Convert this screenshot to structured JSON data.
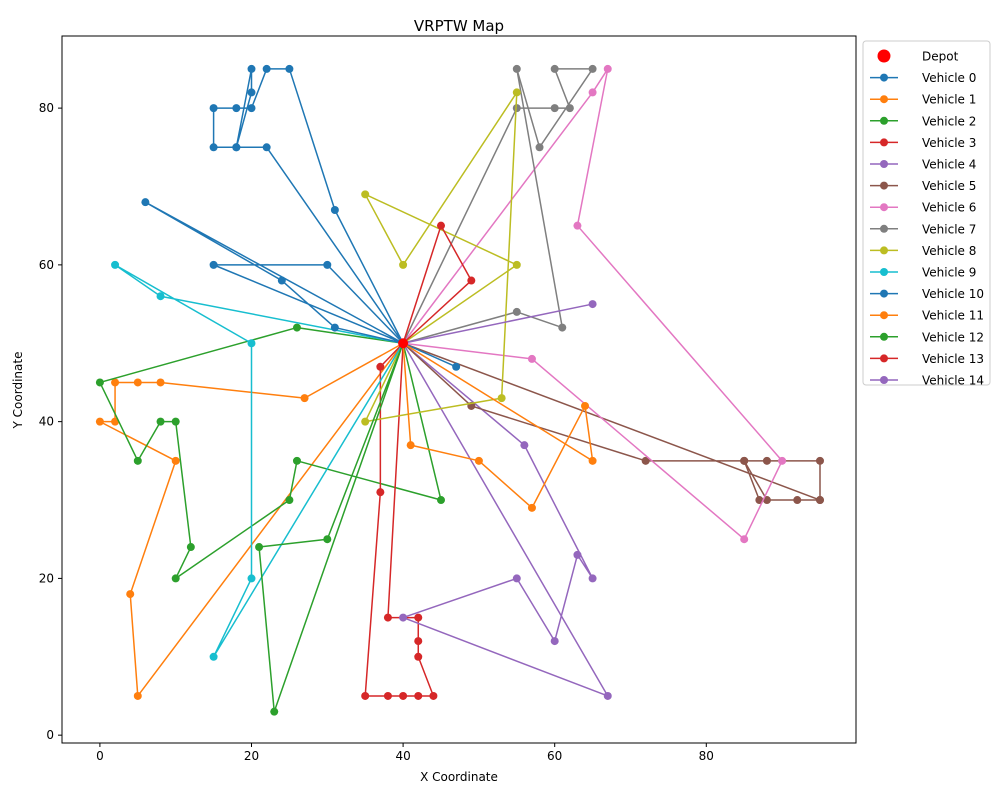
{
  "chart_data": {
    "type": "line",
    "title": "VRPTW Map",
    "xlabel": "X Coordinate",
    "ylabel": "Y Coordinate",
    "xlim": [
      -5,
      99.75
    ],
    "ylim": [
      -1,
      89.2
    ],
    "xticks": [
      0,
      20,
      40,
      60,
      80
    ],
    "yticks": [
      0,
      20,
      40,
      60,
      80
    ],
    "grid": false,
    "legend_position": "outside-right-top",
    "depot": {
      "name": "Depot",
      "x": 40,
      "y": 50,
      "color": "#ff0000"
    },
    "series": [
      {
        "name": "Vehicle 0",
        "color": "#1f77b4",
        "points": [
          [
            40,
            50
          ],
          [
            31,
            67
          ],
          [
            25,
            85
          ],
          [
            22,
            85
          ],
          [
            20,
            80
          ],
          [
            18,
            80
          ],
          [
            15,
            80
          ],
          [
            15,
            75
          ],
          [
            18,
            75
          ],
          [
            20,
            85
          ],
          [
            20,
            82
          ],
          [
            18,
            75
          ],
          [
            22,
            75
          ],
          [
            40,
            50
          ]
        ]
      },
      {
        "name": "Vehicle 1",
        "color": "#ff7f0e",
        "points": [
          [
            40,
            50
          ],
          [
            27,
            43
          ],
          [
            8,
            45
          ],
          [
            5,
            45
          ],
          [
            2,
            45
          ],
          [
            2,
            40
          ],
          [
            0,
            40
          ],
          [
            10,
            35
          ],
          [
            4,
            18
          ],
          [
            5,
            5
          ],
          [
            40,
            50
          ]
        ]
      },
      {
        "name": "Vehicle 2",
        "color": "#2ca02c",
        "points": [
          [
            40,
            50
          ],
          [
            26,
            52
          ],
          [
            0,
            45
          ],
          [
            5,
            35
          ],
          [
            8,
            40
          ],
          [
            10,
            40
          ],
          [
            12,
            24
          ],
          [
            10,
            20
          ],
          [
            25,
            30
          ],
          [
            26,
            35
          ],
          [
            45,
            30
          ],
          [
            40,
            50
          ]
        ]
      },
      {
        "name": "Vehicle 3",
        "color": "#d62728",
        "points": [
          [
            40,
            50
          ],
          [
            37,
            47
          ],
          [
            37,
            31
          ],
          [
            35,
            5
          ],
          [
            38,
            5
          ],
          [
            40,
            5
          ],
          [
            42,
            5
          ],
          [
            44,
            5
          ],
          [
            42,
            10
          ],
          [
            42,
            12
          ],
          [
            42,
            15
          ],
          [
            38,
            15
          ],
          [
            40,
            50
          ]
        ]
      },
      {
        "name": "Vehicle 4",
        "color": "#9467bd",
        "points": [
          [
            40,
            50
          ],
          [
            56,
            37
          ],
          [
            65,
            20
          ],
          [
            63,
            23
          ],
          [
            60,
            12
          ],
          [
            55,
            20
          ],
          [
            40,
            15
          ],
          [
            67,
            5
          ],
          [
            40,
            50
          ]
        ]
      },
      {
        "name": "Vehicle 5",
        "color": "#8c564b",
        "points": [
          [
            40,
            50
          ],
          [
            49,
            42
          ],
          [
            72,
            35
          ],
          [
            85,
            35
          ],
          [
            87,
            30
          ],
          [
            95,
            30
          ],
          [
            95,
            35
          ],
          [
            88,
            35
          ],
          [
            85,
            35
          ],
          [
            88,
            30
          ],
          [
            92,
            30
          ],
          [
            95,
            30
          ],
          [
            40,
            50
          ]
        ]
      },
      {
        "name": "Vehicle 6",
        "color": "#e377c2",
        "points": [
          [
            40,
            50
          ],
          [
            65,
            82
          ],
          [
            67,
            85
          ],
          [
            63,
            65
          ],
          [
            90,
            35
          ],
          [
            85,
            25
          ],
          [
            57,
            48
          ],
          [
            40,
            50
          ]
        ]
      },
      {
        "name": "Vehicle 7",
        "color": "#7f7f7f",
        "points": [
          [
            40,
            50
          ],
          [
            55,
            80
          ],
          [
            60,
            80
          ],
          [
            62,
            80
          ],
          [
            60,
            85
          ],
          [
            65,
            85
          ],
          [
            58,
            75
          ],
          [
            55,
            85
          ],
          [
            61,
            52
          ],
          [
            55,
            54
          ],
          [
            40,
            50
          ]
        ]
      },
      {
        "name": "Vehicle 8",
        "color": "#bcbd22",
        "points": [
          [
            40,
            50
          ],
          [
            55,
            60
          ],
          [
            35,
            69
          ],
          [
            40,
            60
          ],
          [
            55,
            82
          ],
          [
            53,
            43
          ],
          [
            35,
            40
          ],
          [
            40,
            50
          ]
        ]
      },
      {
        "name": "Vehicle 9",
        "color": "#17becf",
        "points": [
          [
            40,
            50
          ],
          [
            8,
            56
          ],
          [
            2,
            60
          ],
          [
            20,
            50
          ],
          [
            20,
            20
          ],
          [
            15,
            10
          ],
          [
            40,
            50
          ]
        ]
      },
      {
        "name": "Vehicle 10",
        "color": "#1f77b4",
        "points": [
          [
            40,
            50
          ],
          [
            47,
            47
          ],
          [
            40,
            50
          ],
          [
            30,
            60
          ],
          [
            15,
            60
          ],
          [
            40,
            50
          ],
          [
            31,
            52
          ],
          [
            24,
            58
          ],
          [
            6,
            68
          ],
          [
            40,
            50
          ]
        ]
      },
      {
        "name": "Vehicle 11",
        "color": "#ff7f0e",
        "points": [
          [
            40,
            50
          ],
          [
            65,
            35
          ],
          [
            64,
            42
          ],
          [
            57,
            29
          ],
          [
            50,
            35
          ],
          [
            41,
            37
          ],
          [
            40,
            50
          ]
        ]
      },
      {
        "name": "Vehicle 12",
        "color": "#2ca02c",
        "points": [
          [
            40,
            50
          ],
          [
            30,
            25
          ],
          [
            21,
            24
          ],
          [
            23,
            3
          ],
          [
            40,
            50
          ]
        ]
      },
      {
        "name": "Vehicle 13",
        "color": "#d62728",
        "points": [
          [
            40,
            50
          ],
          [
            45,
            65
          ],
          [
            49,
            58
          ],
          [
            40,
            50
          ]
        ]
      },
      {
        "name": "Vehicle 14",
        "color": "#9467bd",
        "points": [
          [
            40,
            50
          ],
          [
            65,
            55
          ],
          [
            40,
            50
          ]
        ]
      }
    ]
  }
}
